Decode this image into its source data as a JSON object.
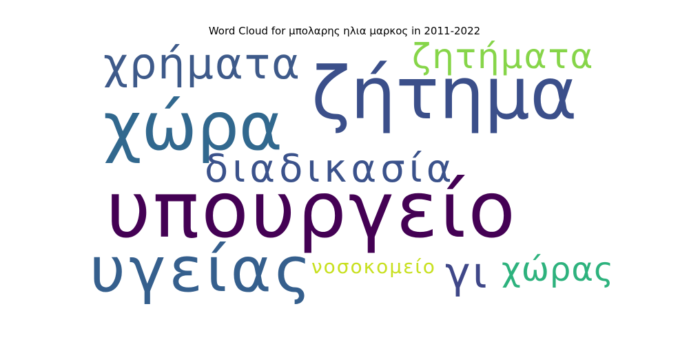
{
  "title": "Word Cloud for μπολαρης ηλια μαρκος in 2011-2022",
  "words": [
    {
      "text": "υπουργείο",
      "color": "#440154"
    },
    {
      "text": "ζήτημα",
      "color": "#3b4f8a"
    },
    {
      "text": "χώρα",
      "color": "#31688e"
    },
    {
      "text": "υγείας",
      "color": "#355f8d"
    },
    {
      "text": "διαδικασία",
      "color": "#3b528b"
    },
    {
      "text": "χρήματα",
      "color": "#3e5a8a"
    },
    {
      "text": "ζητήματα",
      "color": "#86d549"
    },
    {
      "text": "χώρας",
      "color": "#2db27d"
    },
    {
      "text": "γι",
      "color": "#3f4788"
    },
    {
      "text": "νοσοκομείο",
      "color": "#c8e020"
    }
  ]
}
